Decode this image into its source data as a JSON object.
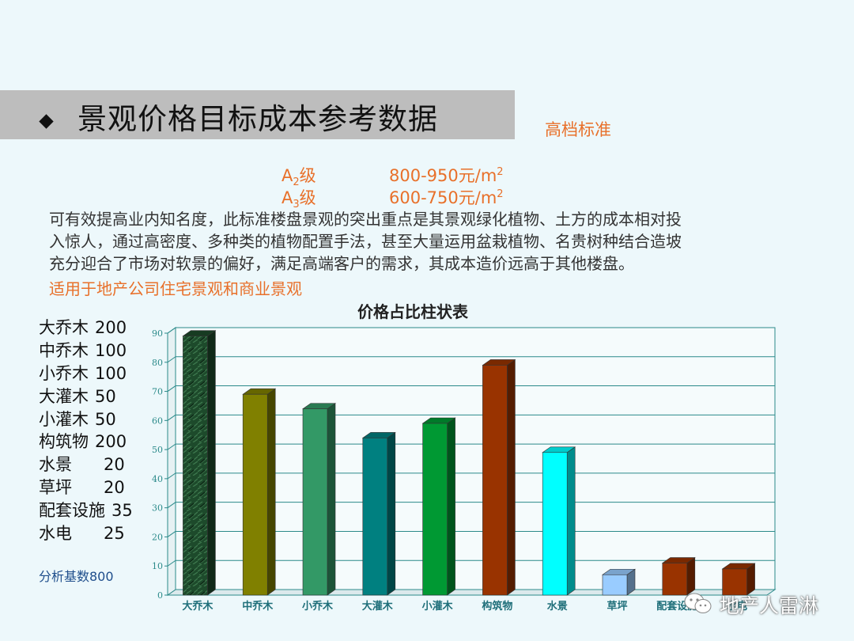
{
  "header": {
    "title": "景观价格目标成本参考数据",
    "tier": "高档标准"
  },
  "grades": [
    {
      "letter": "A",
      "sub": "2",
      "suffix": "级",
      "price": "800-950元/m",
      "sup": "2"
    },
    {
      "letter": "A",
      "sub": "3",
      "suffix": "级",
      "price": "600-750元/m",
      "sup": "2"
    }
  ],
  "description": [
    "可有效提高业内知名度，此标准楼盘景观的突出重点是其景观绿化植物、土方的成本相对投",
    "入惊人，通过高密度、多种类的植物配置手法，甚至大量运用盆栽植物、名贵树种结合造坡",
    "充分迎合了市场对软景的偏好，满足高端客户的需求，其成本造价远高于其他楼盘。"
  ],
  "apply_note": "适用于地产公司住宅景观和商业景观",
  "price_list": [
    {
      "name": "大乔木",
      "value": "200"
    },
    {
      "name": "中乔木",
      "value": "100"
    },
    {
      "name": "小乔木",
      "value": "100"
    },
    {
      "name": "大灌木",
      "value": "50"
    },
    {
      "name": "小灌木",
      "value": "50"
    },
    {
      "name": "构筑物",
      "value": "200"
    },
    {
      "name": "水景",
      "value": "20"
    },
    {
      "name": "草坪",
      "value": "20"
    },
    {
      "name": "配套设施",
      "value": "35"
    },
    {
      "name": "水电",
      "value": "25"
    }
  ],
  "base_note": "分析基数800",
  "chart_data": {
    "type": "bar",
    "title": "价格占比柱状表",
    "categories": [
      "大乔木",
      "中乔木",
      "小乔木",
      "大灌木",
      "小灌木",
      "构筑物",
      "水景",
      "草坪",
      "配套设施",
      "水电"
    ],
    "values": [
      89,
      69,
      64,
      54,
      59,
      79,
      49,
      7,
      11,
      9
    ],
    "colors": [
      "#1d4a2b",
      "#808000",
      "#339966",
      "#008080",
      "#009933",
      "#993300",
      "#00ffff",
      "#99ccff",
      "#993300",
      "#993300"
    ],
    "ylim": [
      0,
      90
    ],
    "yticks": [
      0,
      10,
      20,
      30,
      40,
      50,
      60,
      70,
      80,
      90
    ],
    "grid": true,
    "legend": "none"
  },
  "watermark": {
    "text": "地产人雷淋",
    "icon": "wechat-icon"
  }
}
